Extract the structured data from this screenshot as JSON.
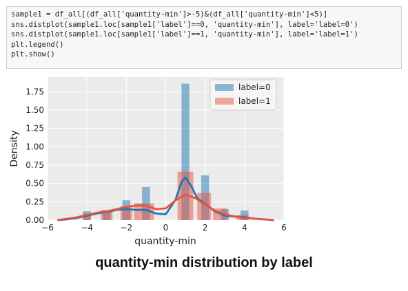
{
  "code_cell": {
    "lines": [
      "sample1 = df_all[(df_all['quantity-min']>-5)&(df_all['quantity-min']<5)]",
      "sns.distplot(sample1.loc[sample1['label']==0, 'quantity-min'], label='label=0')",
      "sns.distplot(sample1.loc[sample1['label']==1, 'quantity-min'], label='label=1')",
      "plt.legend()",
      "plt.show()"
    ]
  },
  "caption": "quantity-min distribution by label",
  "chart_data": {
    "type": "bar",
    "xlabel": "quantity-min",
    "ylabel": "Density",
    "xlim": [
      -6,
      6
    ],
    "ylim": [
      0,
      1.95
    ],
    "x_ticks": [
      -6,
      -4,
      -2,
      0,
      2,
      4,
      6
    ],
    "x_tick_labels": [
      "−6",
      "−4",
      "−2",
      "0",
      "2",
      "4",
      "6"
    ],
    "y_ticks": [
      0,
      0.25,
      0.5,
      0.75,
      1.0,
      1.25,
      1.5,
      1.75
    ],
    "y_tick_labels": [
      "0.00",
      "0.25",
      "0.50",
      "0.75",
      "1.00",
      "1.25",
      "1.50",
      "1.75"
    ],
    "grid": true,
    "legend_position": "top-right",
    "series": [
      {
        "name": "label=0",
        "color": "#1f77b4",
        "bins": [
          {
            "x0": -4.2,
            "x1": -3.8,
            "value": 0.12
          },
          {
            "x0": -3.2,
            "x1": -2.8,
            "value": 0.13
          },
          {
            "x0": -2.2,
            "x1": -1.8,
            "value": 0.27
          },
          {
            "x0": -1.2,
            "x1": -0.8,
            "value": 0.45
          },
          {
            "x0": 0.8,
            "x1": 1.2,
            "value": 1.86
          },
          {
            "x0": 1.8,
            "x1": 2.2,
            "value": 0.61
          },
          {
            "x0": 2.8,
            "x1": 3.2,
            "value": 0.15
          },
          {
            "x0": 3.8,
            "x1": 4.2,
            "value": 0.13
          }
        ],
        "kde": [
          [
            -5.5,
            0.0
          ],
          [
            -5.0,
            0.01
          ],
          [
            -4.5,
            0.03
          ],
          [
            -4.0,
            0.06
          ],
          [
            -3.5,
            0.09
          ],
          [
            -3.0,
            0.11
          ],
          [
            -2.5,
            0.14
          ],
          [
            -2.0,
            0.15
          ],
          [
            -1.5,
            0.14
          ],
          [
            -1.0,
            0.14
          ],
          [
            -0.5,
            0.09
          ],
          [
            0.0,
            0.08
          ],
          [
            0.5,
            0.28
          ],
          [
            0.8,
            0.52
          ],
          [
            1.0,
            0.58
          ],
          [
            1.3,
            0.46
          ],
          [
            1.6,
            0.3
          ],
          [
            2.0,
            0.22
          ],
          [
            2.5,
            0.12
          ],
          [
            3.0,
            0.06
          ],
          [
            3.5,
            0.05
          ],
          [
            4.0,
            0.04
          ],
          [
            4.5,
            0.02
          ],
          [
            5.0,
            0.01
          ],
          [
            5.5,
            0.0
          ]
        ]
      },
      {
        "name": "label=1",
        "color": "#e8533f",
        "bins": [
          {
            "x0": -4.2,
            "x1": -3.8,
            "value": 0.09
          },
          {
            "x0": -3.3,
            "x1": -2.7,
            "value": 0.14
          },
          {
            "x0": -2.3,
            "x1": -1.7,
            "value": 0.19
          },
          {
            "x0": -1.6,
            "x1": -0.6,
            "value": 0.23
          },
          {
            "x0": 0.6,
            "x1": 1.4,
            "value": 0.66
          },
          {
            "x0": 1.6,
            "x1": 2.3,
            "value": 0.37
          },
          {
            "x0": 2.4,
            "x1": 3.1,
            "value": 0.16
          },
          {
            "x0": 3.6,
            "x1": 4.2,
            "value": 0.07
          }
        ],
        "kde": [
          [
            -5.5,
            0.0
          ],
          [
            -5.0,
            0.02
          ],
          [
            -4.5,
            0.04
          ],
          [
            -4.0,
            0.07
          ],
          [
            -3.5,
            0.1
          ],
          [
            -3.0,
            0.12
          ],
          [
            -2.5,
            0.15
          ],
          [
            -2.0,
            0.18
          ],
          [
            -1.5,
            0.2
          ],
          [
            -1.0,
            0.2
          ],
          [
            -0.5,
            0.15
          ],
          [
            0.0,
            0.16
          ],
          [
            0.5,
            0.27
          ],
          [
            1.0,
            0.35
          ],
          [
            1.5,
            0.3
          ],
          [
            2.0,
            0.21
          ],
          [
            2.5,
            0.13
          ],
          [
            3.0,
            0.08
          ],
          [
            3.5,
            0.05
          ],
          [
            4.0,
            0.03
          ],
          [
            4.5,
            0.02
          ],
          [
            5.0,
            0.01
          ],
          [
            5.5,
            0.0
          ]
        ]
      }
    ]
  }
}
